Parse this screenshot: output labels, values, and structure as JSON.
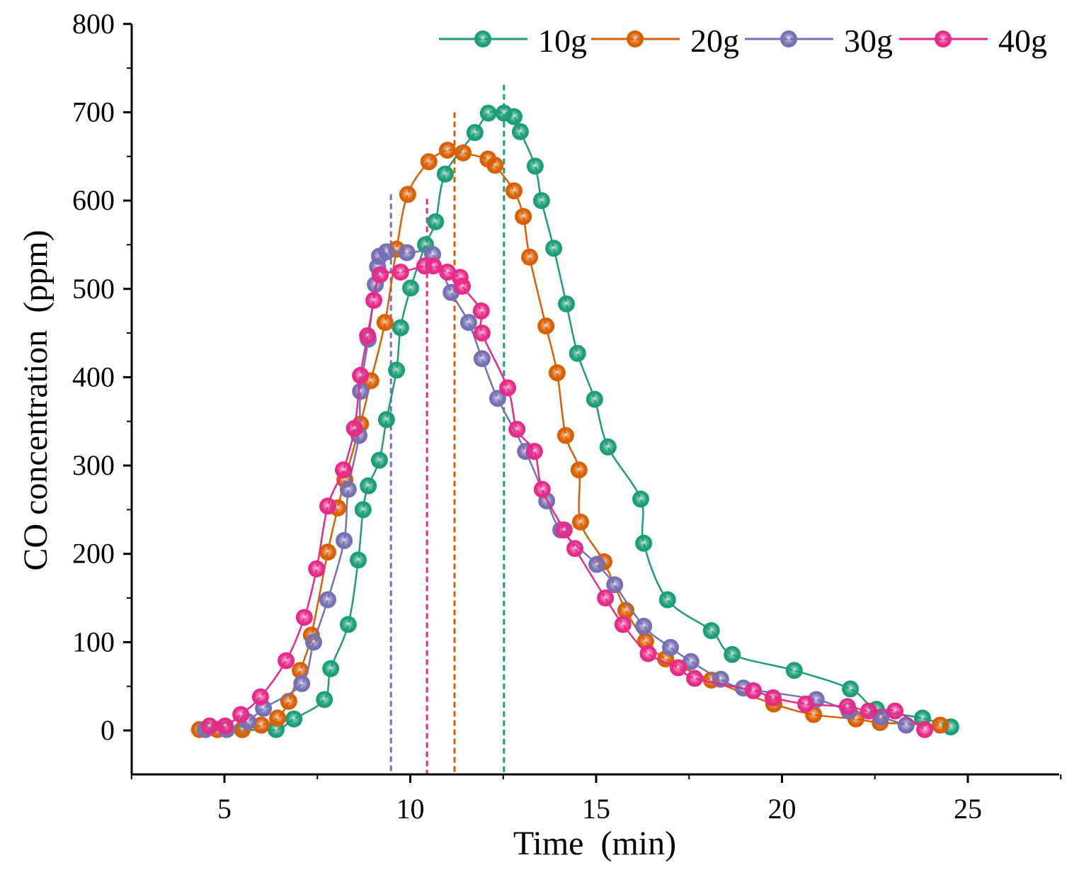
{
  "chart_data": {
    "type": "line",
    "xlabel": "Time  (min)",
    "ylabel": "CO concentration  (ppm)",
    "xlim": [
      2.5,
      27.5
    ],
    "ylim": [
      -50,
      800
    ],
    "xticks": [
      5,
      10,
      15,
      20,
      25
    ],
    "xtick_labels": [
      "5",
      "10",
      "15",
      "20",
      "25"
    ],
    "yticks": [
      0,
      100,
      200,
      300,
      400,
      500,
      600,
      700,
      800
    ],
    "ytick_labels": [
      "0",
      "100",
      "200",
      "300",
      "400",
      "500",
      "600",
      "700",
      "800"
    ],
    "grid": false,
    "legend_position": "top-right",
    "series": [
      {
        "name": "10g",
        "color": "#1b9e77",
        "peak_time": 12.52,
        "peak_line_top": 731,
        "x": [
          5.48,
          6.39,
          6.87,
          7.69,
          7.86,
          8.33,
          8.6,
          8.73,
          8.87,
          9.17,
          9.36,
          9.63,
          9.74,
          10.01,
          10.41,
          10.68,
          10.94,
          11.74,
          12.1,
          12.52,
          12.79,
          12.96,
          13.36,
          13.53,
          13.86,
          14.2,
          14.5,
          14.96,
          15.32,
          16.2,
          16.28,
          16.92,
          18.1,
          18.66,
          20.33,
          21.84,
          22.54,
          23.78,
          24.54
        ],
        "y": [
          1,
          1,
          13,
          35,
          70,
          120,
          193,
          250,
          277,
          306,
          352,
          408,
          456,
          501,
          550,
          576,
          630,
          677,
          699,
          699,
          695,
          678,
          639,
          600,
          546,
          483,
          427,
          375,
          321,
          262,
          212,
          148,
          113,
          86,
          68,
          47,
          24,
          14,
          4
        ]
      },
      {
        "name": "20g",
        "color": "#d95f02",
        "peak_time": 11.19,
        "peak_line_top": 700,
        "x": [
          4.33,
          4.81,
          5.48,
          5.99,
          6.43,
          6.73,
          7.04,
          7.34,
          7.78,
          8.05,
          8.24,
          8.66,
          8.94,
          9.32,
          9.63,
          9.93,
          10.5,
          11.0,
          11.42,
          12.09,
          12.28,
          12.79,
          13.04,
          13.21,
          13.65,
          13.95,
          14.18,
          14.54,
          14.58,
          15.21,
          15.8,
          16.33,
          16.87,
          18.1,
          19.78,
          20.85,
          21.99,
          22.64,
          24.26
        ],
        "y": [
          1,
          1,
          1,
          6,
          14,
          33,
          68,
          108,
          202,
          252,
          284,
          347,
          396,
          462,
          545,
          607,
          644,
          657,
          654,
          647,
          640,
          611,
          582,
          536,
          458,
          405,
          334,
          295,
          236,
          191,
          136,
          101,
          81,
          57,
          30,
          18,
          13,
          9,
          6
        ]
      },
      {
        "name": "30g",
        "color": "#7570b3",
        "peak_time": 9.48,
        "peak_line_top": 607,
        "x": [
          4.49,
          5.06,
          5.63,
          6.05,
          7.08,
          7.4,
          7.78,
          8.22,
          8.33,
          8.62,
          8.66,
          8.87,
          9.06,
          9.12,
          9.17,
          9.36,
          9.91,
          10.6,
          11.1,
          11.57,
          11.93,
          12.35,
          13.1,
          13.67,
          14.05,
          15.02,
          15.5,
          16.28,
          17.0,
          17.55,
          18.35,
          18.96,
          20.92,
          21.8,
          22.66,
          23.34
        ],
        "y": [
          1,
          1,
          10,
          25,
          53,
          100,
          148,
          215,
          273,
          334,
          384,
          443,
          505,
          525,
          537,
          542,
          541,
          539,
          496,
          462,
          421,
          376,
          316,
          260,
          227,
          188,
          165,
          118,
          94,
          78,
          58,
          48,
          35,
          22,
          15,
          6
        ]
      },
      {
        "name": "40g",
        "color": "#e7298a",
        "peak_time": 10.45,
        "peak_line_top": 602,
        "x": [
          4.6,
          5.02,
          5.44,
          5.97,
          6.66,
          7.15,
          7.48,
          7.78,
          8.2,
          8.5,
          8.66,
          8.85,
          9.02,
          9.19,
          9.74,
          10.39,
          10.62,
          11.0,
          11.34,
          11.4,
          11.91,
          11.93,
          12.62,
          12.87,
          13.34,
          13.55,
          14.14,
          14.43,
          15.25,
          15.72,
          16.4,
          17.21,
          17.65,
          19.23,
          19.76,
          20.64,
          21.76,
          22.33,
          23.04,
          23.84
        ],
        "y": [
          5,
          5,
          18,
          38,
          79,
          128,
          183,
          254,
          295,
          342,
          402,
          447,
          487,
          516,
          519,
          526,
          526,
          519,
          513,
          503,
          475,
          450,
          388,
          341,
          316,
          273,
          227,
          206,
          150,
          120,
          87,
          71,
          59,
          45,
          37,
          30,
          27,
          22,
          22,
          1
        ]
      }
    ]
  }
}
